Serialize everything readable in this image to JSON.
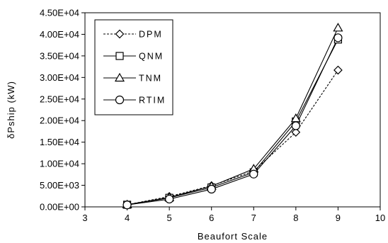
{
  "chart_data": {
    "type": "line",
    "title": "",
    "xlabel": "Beaufort Scale",
    "ylabel": "δPship (kW)",
    "xlim": [
      3,
      10
    ],
    "ylim": [
      0,
      45000
    ],
    "x_ticks": [
      3,
      4,
      5,
      6,
      7,
      8,
      9,
      10
    ],
    "x_tick_labels": [
      "3",
      "4",
      "5",
      "6",
      "7",
      "8",
      "9",
      "10"
    ],
    "y_ticks": [
      0,
      5000,
      10000,
      15000,
      20000,
      25000,
      30000,
      35000,
      40000,
      45000
    ],
    "y_tick_labels": [
      "0.00E+00",
      "5.00E+03",
      "1.00E+04",
      "1.50E+04",
      "2.00E+04",
      "2.50E+04",
      "3.00E+04",
      "3.50E+04",
      "4.00E+04",
      "4.50E+04"
    ],
    "grid": false,
    "legend_position": "top-left",
    "x": [
      4,
      5,
      6,
      7,
      8,
      9
    ],
    "series": [
      {
        "name": "DPM",
        "marker": "diamond",
        "line": "dashed",
        "values": [
          500,
          2400,
          4900,
          8300,
          17300,
          31700
        ]
      },
      {
        "name": "QNM",
        "marker": "square",
        "line": "solid",
        "values": [
          500,
          2100,
          4500,
          8000,
          19800,
          38800
        ]
      },
      {
        "name": "TNM",
        "marker": "triangle",
        "line": "solid",
        "values": [
          500,
          2200,
          4800,
          8800,
          20500,
          41500
        ]
      },
      {
        "name": "RTIM",
        "marker": "circle",
        "line": "solid",
        "values": [
          450,
          1800,
          4100,
          7600,
          18800,
          39200
        ]
      }
    ],
    "colors": {
      "line": "#000000",
      "marker_fill": "#ffffff",
      "background": "#ffffff"
    }
  }
}
